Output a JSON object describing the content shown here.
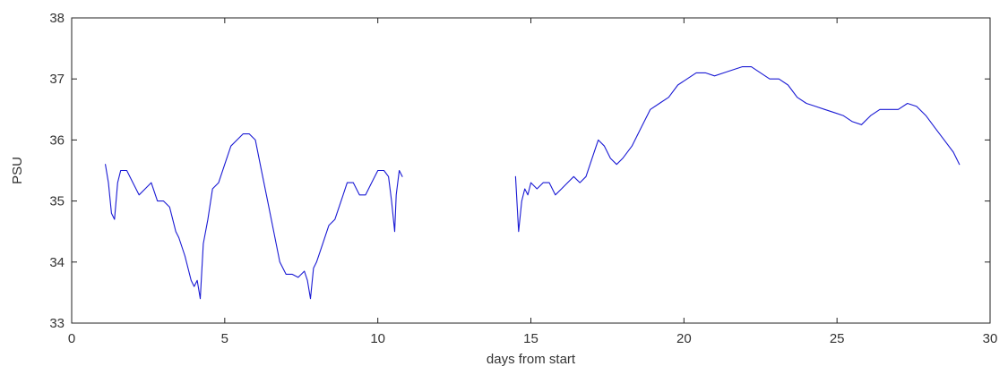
{
  "chart_data": {
    "type": "line",
    "title": "",
    "xlabel": "days from start",
    "ylabel": "PSU",
    "xlim": [
      0,
      30
    ],
    "ylim": [
      33,
      38
    ],
    "x_ticks": [
      "0",
      "5",
      "10",
      "15",
      "20",
      "25",
      "30"
    ],
    "y_ticks": [
      "33",
      "34",
      "35",
      "36",
      "37",
      "38"
    ],
    "grid": false,
    "legend": "none",
    "line_color": "#1a1ad4",
    "series": [
      {
        "segments": [
          {
            "x": [
              1.1,
              1.2,
              1.3,
              1.4,
              1.5,
              1.6,
              1.8,
              2.0,
              2.2,
              2.4,
              2.6,
              2.8,
              3.0,
              3.2,
              3.4,
              3.5,
              3.7,
              3.9,
              4.0,
              4.1,
              4.2,
              4.3,
              4.45,
              4.6,
              4.8,
              5.0,
              5.2,
              5.4,
              5.6,
              5.8,
              6.0,
              6.2,
              6.4,
              6.6,
              6.8,
              7.0,
              7.2,
              7.4,
              7.6,
              7.7,
              7.8,
              7.9,
              8.0,
              8.2,
              8.4,
              8.6,
              8.8,
              9.0,
              9.2,
              9.4,
              9.6,
              9.8,
              10.0,
              10.2,
              10.35,
              10.45,
              10.55,
              10.6,
              10.7,
              10.8
            ],
            "y": [
              35.6,
              35.3,
              34.8,
              34.7,
              35.3,
              35.5,
              35.5,
              35.3,
              35.1,
              35.2,
              35.3,
              35.0,
              35.0,
              34.9,
              34.5,
              34.4,
              34.1,
              33.7,
              33.6,
              33.7,
              33.4,
              34.3,
              34.7,
              35.2,
              35.3,
              35.6,
              35.9,
              36.0,
              36.1,
              36.1,
              36.0,
              35.5,
              35.0,
              34.5,
              34.0,
              33.8,
              33.8,
              33.75,
              33.85,
              33.7,
              33.4,
              33.9,
              34.0,
              34.3,
              34.6,
              34.7,
              35.0,
              35.3,
              35.3,
              35.1,
              35.1,
              35.3,
              35.5,
              35.5,
              35.4,
              35.0,
              34.5,
              35.1,
              35.5,
              35.4
            ]
          },
          {
            "x": [
              14.5,
              14.6,
              14.7,
              14.8,
              14.9,
              15.0,
              15.2,
              15.4,
              15.6,
              15.8,
              16.0,
              16.2,
              16.4,
              16.6,
              16.8,
              17.0,
              17.2,
              17.4,
              17.6,
              17.8,
              18.0,
              18.3,
              18.6,
              18.9,
              19.2,
              19.5,
              19.8,
              20.1,
              20.4,
              20.7,
              21.0,
              21.3,
              21.6,
              21.9,
              22.2,
              22.5,
              22.8,
              23.1,
              23.4,
              23.7,
              24.0,
              24.3,
              24.6,
              24.9,
              25.2,
              25.5,
              25.8,
              26.1,
              26.4,
              26.7,
              27.0,
              27.3,
              27.6,
              27.9,
              28.2,
              28.5,
              28.8,
              29.0
            ],
            "y": [
              35.4,
              34.5,
              35.0,
              35.2,
              35.1,
              35.3,
              35.2,
              35.3,
              35.3,
              35.1,
              35.2,
              35.3,
              35.4,
              35.3,
              35.4,
              35.7,
              36.0,
              35.9,
              35.7,
              35.6,
              35.7,
              35.9,
              36.2,
              36.5,
              36.6,
              36.7,
              36.9,
              37.0,
              37.1,
              37.1,
              37.05,
              37.1,
              37.15,
              37.2,
              37.2,
              37.1,
              37.0,
              37.0,
              36.9,
              36.7,
              36.6,
              36.55,
              36.5,
              36.45,
              36.4,
              36.3,
              36.25,
              36.4,
              36.5,
              36.5,
              36.5,
              36.6,
              36.55,
              36.4,
              36.2,
              36.0,
              35.8,
              35.6
            ]
          }
        ]
      }
    ]
  }
}
